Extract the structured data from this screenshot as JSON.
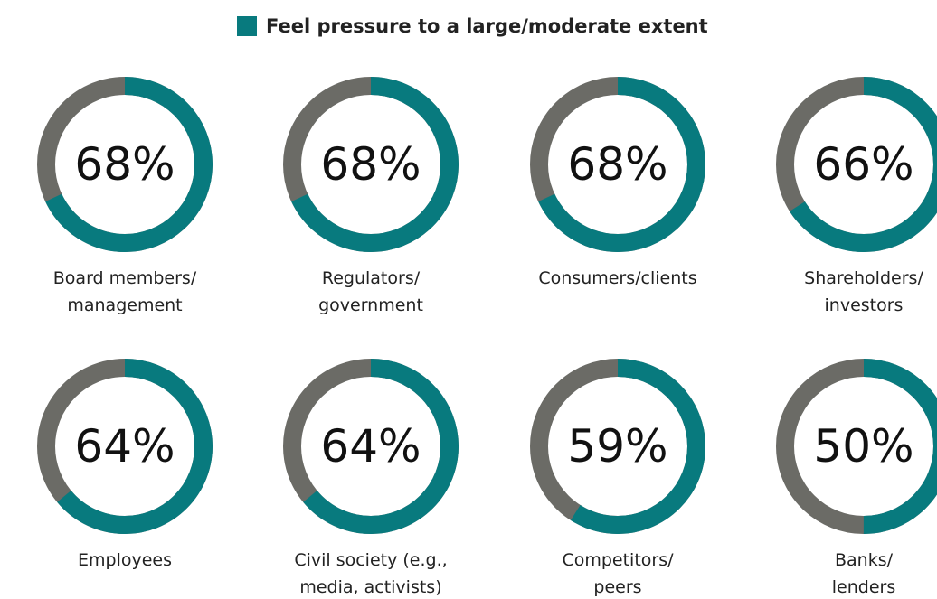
{
  "chart_data": {
    "type": "donut",
    "legend": "top",
    "series": [
      {
        "name": "Feel pressure to a large/moderate extent",
        "color": "#087a7e",
        "values": [
          68,
          68,
          68,
          66,
          64,
          64,
          59,
          50
        ],
        "value_labels": [
          "68%",
          "68%",
          "68%",
          "66%",
          "64%",
          "64%",
          "59%",
          "50%"
        ]
      }
    ],
    "categories": [
      "Board members/\nmanagement",
      "Regulators/\ngovernment",
      "Consumers/clients",
      "Shareholders/\ninvestors",
      "Employees",
      "Civil society (e.g.,\nmedia, activists)",
      "Competitors/\npeers",
      "Banks/\nlenders"
    ]
  }
}
